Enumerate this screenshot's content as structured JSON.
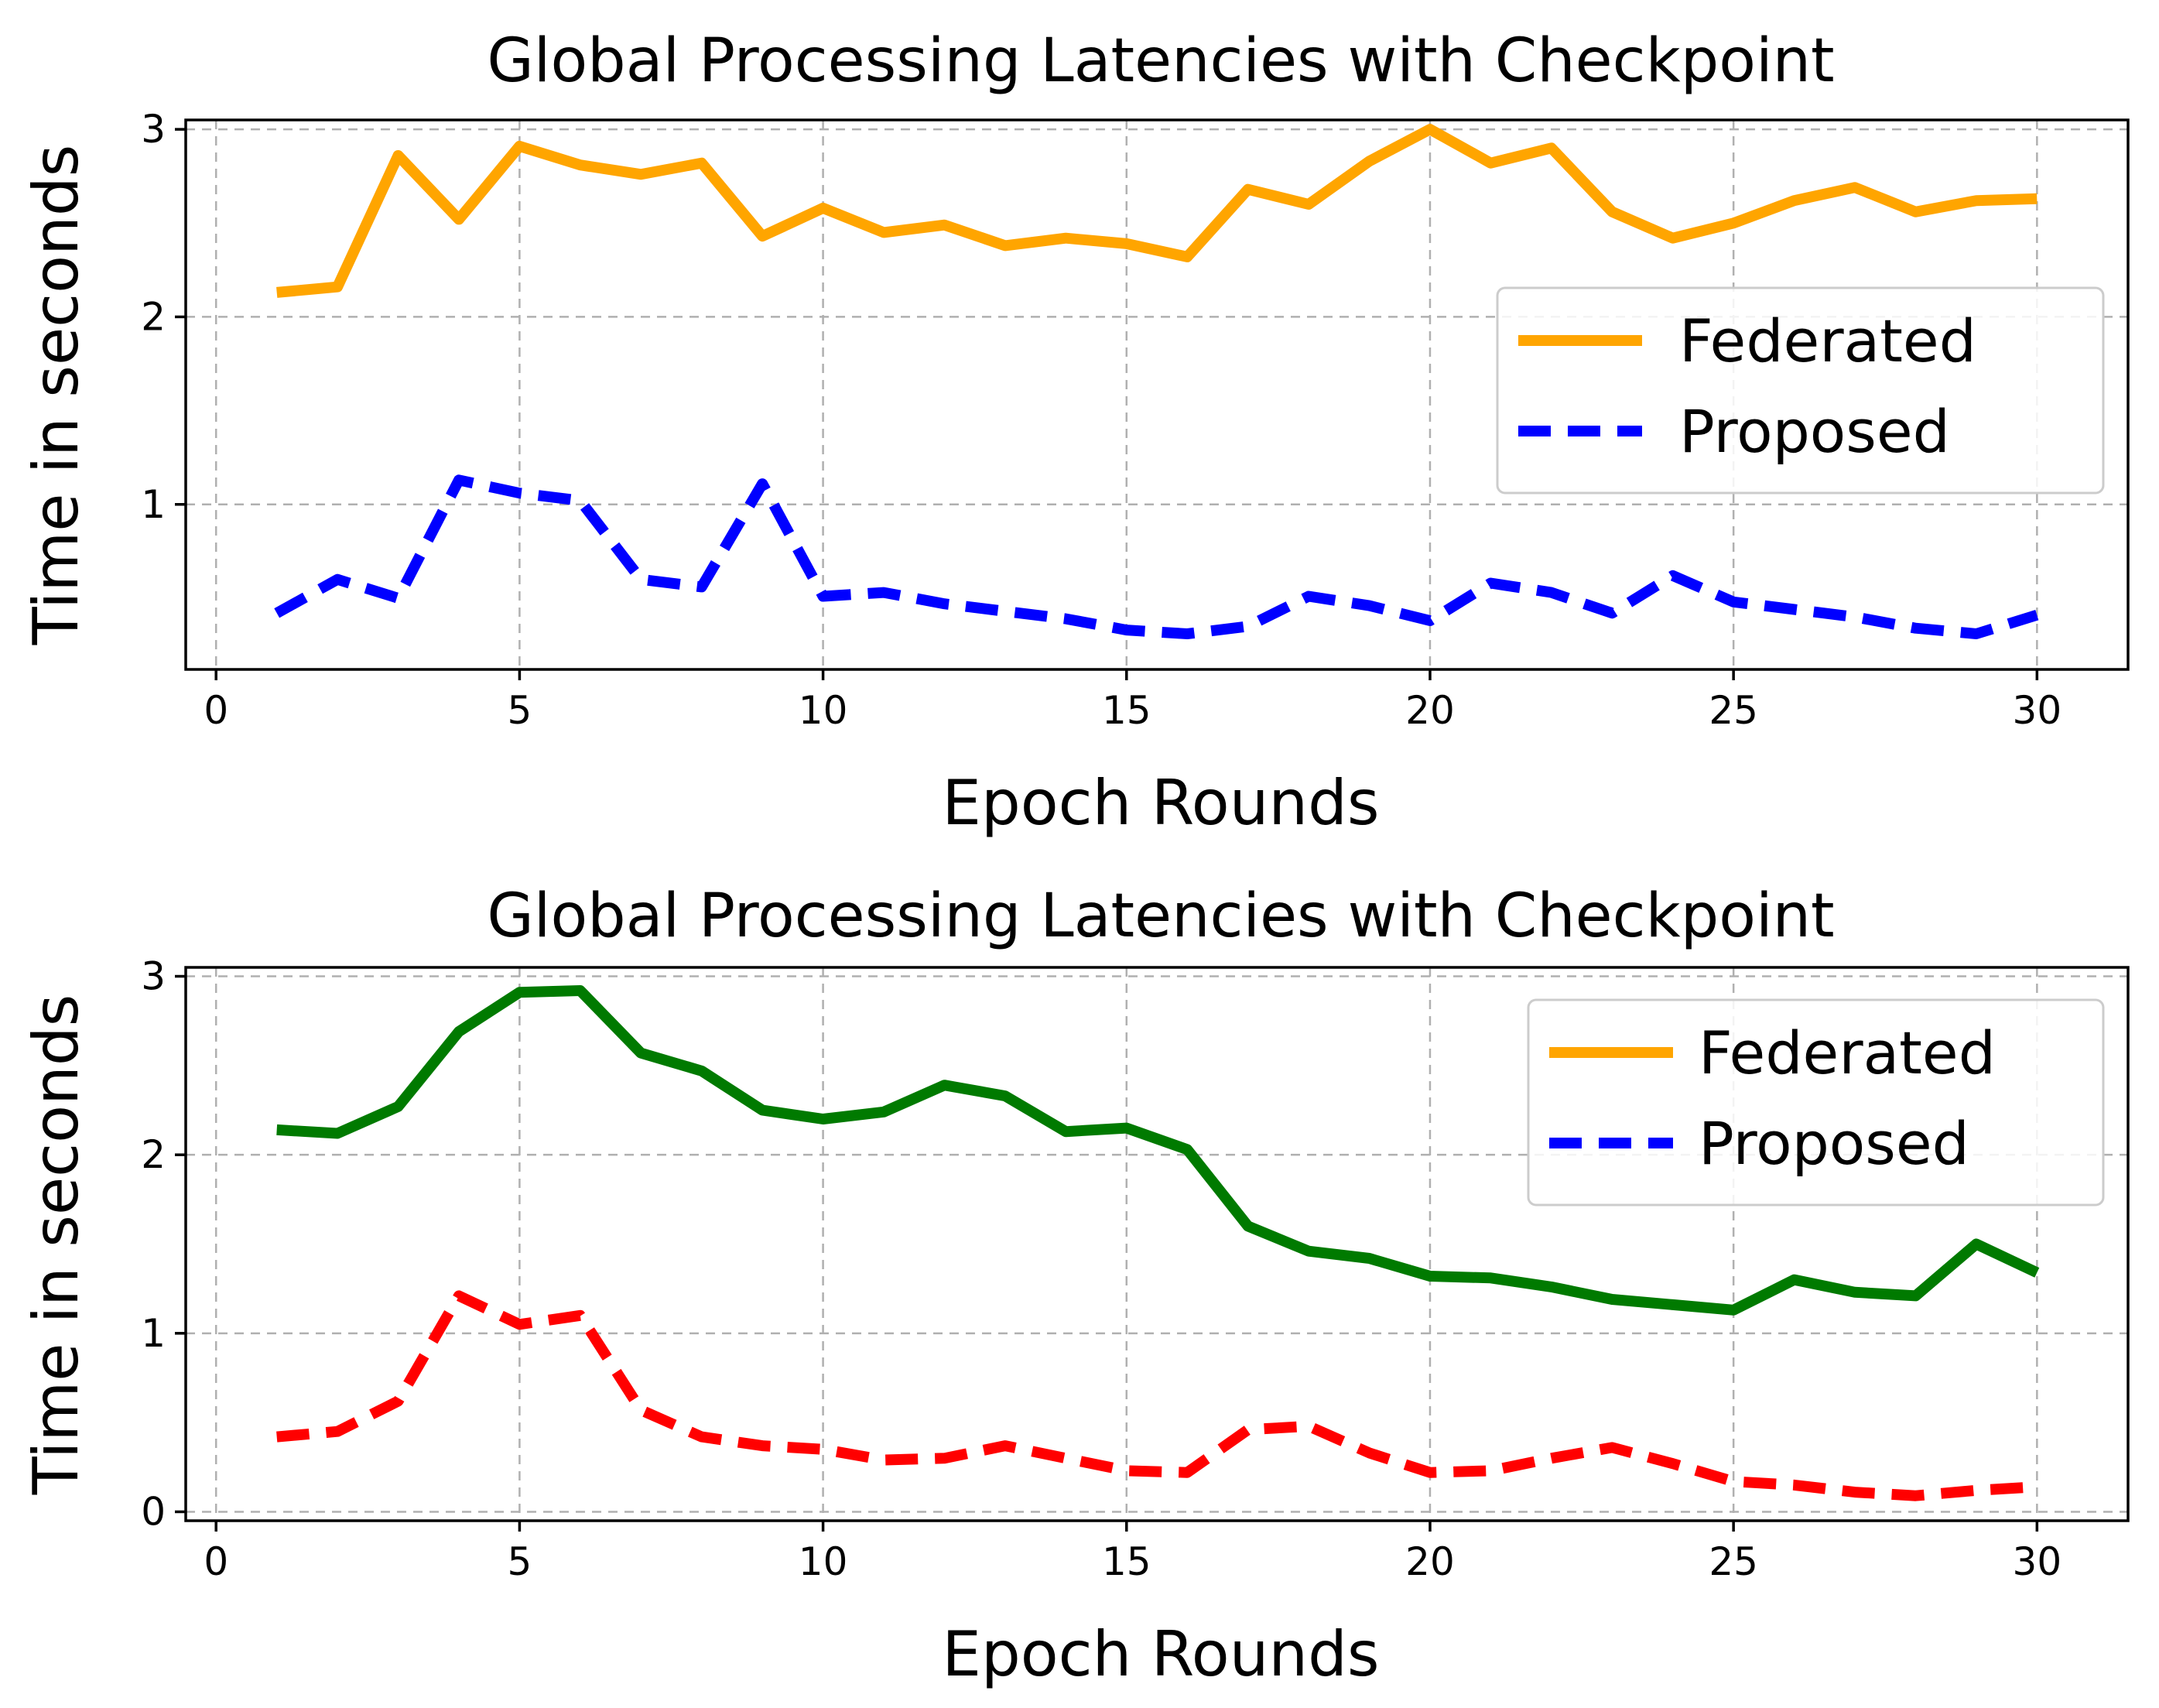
{
  "chart_data": [
    {
      "type": "line",
      "title": "Global Processing Latencies with Checkpoint",
      "xlabel": "Epoch Rounds",
      "ylabel": "Time in seconds",
      "xlim": [
        -0.5,
        31.5
      ],
      "ylim": [
        0.12,
        3.05
      ],
      "xticks": [
        0,
        5,
        10,
        15,
        20,
        25,
        30
      ],
      "yticks": [
        1,
        2,
        3
      ],
      "grid": true,
      "legend_position": "center-right",
      "legend": [
        {
          "label": "Federated",
          "color": "#ffa500",
          "dash": "solid"
        },
        {
          "label": "Proposed",
          "color": "#0000ff",
          "dash": "dashed"
        }
      ],
      "x": [
        1,
        2,
        3,
        4,
        5,
        6,
        7,
        8,
        9,
        10,
        11,
        12,
        13,
        14,
        15,
        16,
        17,
        18,
        19,
        20,
        21,
        22,
        23,
        24,
        25,
        26,
        27,
        28,
        29,
        30
      ],
      "series": [
        {
          "color": "#ffa500",
          "dash": "solid",
          "values": [
            2.13,
            2.16,
            2.86,
            2.52,
            2.91,
            2.81,
            2.76,
            2.82,
            2.43,
            2.58,
            2.45,
            2.49,
            2.38,
            2.42,
            2.39,
            2.32,
            2.68,
            2.6,
            2.83,
            3.0,
            2.82,
            2.9,
            2.56,
            2.42,
            2.5,
            2.62,
            2.69,
            2.56,
            2.62,
            2.63
          ]
        },
        {
          "color": "#0000ff",
          "dash": "dashed",
          "values": [
            0.42,
            0.6,
            0.5,
            1.13,
            1.06,
            1.02,
            0.6,
            0.56,
            1.11,
            0.51,
            0.53,
            0.47,
            0.43,
            0.39,
            0.33,
            0.31,
            0.35,
            0.51,
            0.46,
            0.38,
            0.58,
            0.53,
            0.42,
            0.62,
            0.48,
            0.44,
            0.4,
            0.34,
            0.31,
            0.41
          ]
        }
      ]
    },
    {
      "type": "line",
      "title": "Global Processing Latencies with Checkpoint",
      "xlabel": "Epoch Rounds",
      "ylabel": "Time in seconds",
      "xlim": [
        -0.5,
        31.5
      ],
      "ylim": [
        -0.05,
        3.05
      ],
      "xticks": [
        0,
        5,
        10,
        15,
        20,
        25,
        30
      ],
      "yticks": [
        0,
        1,
        2,
        3
      ],
      "grid": true,
      "legend_position": "top-right",
      "legend": [
        {
          "label": "Federated",
          "color": "#ffa500",
          "dash": "solid"
        },
        {
          "label": "Proposed",
          "color": "#0000ff",
          "dash": "dashed"
        }
      ],
      "x": [
        1,
        2,
        3,
        4,
        5,
        6,
        7,
        8,
        9,
        10,
        11,
        12,
        13,
        14,
        15,
        16,
        17,
        18,
        19,
        20,
        21,
        22,
        23,
        24,
        25,
        26,
        27,
        28,
        29,
        30
      ],
      "series": [
        {
          "color": "#007a00",
          "dash": "solid",
          "values": [
            2.14,
            2.12,
            2.27,
            2.69,
            2.91,
            2.92,
            2.57,
            2.47,
            2.25,
            2.2,
            2.24,
            2.39,
            2.33,
            2.13,
            2.15,
            2.03,
            1.6,
            1.46,
            1.42,
            1.32,
            1.31,
            1.26,
            1.19,
            1.16,
            1.13,
            1.3,
            1.23,
            1.21,
            1.5,
            1.34
          ]
        },
        {
          "color": "#ff0000",
          "dash": "dashed",
          "values": [
            0.42,
            0.45,
            0.62,
            1.21,
            1.05,
            1.1,
            0.57,
            0.42,
            0.37,
            0.35,
            0.29,
            0.3,
            0.37,
            0.3,
            0.23,
            0.22,
            0.46,
            0.48,
            0.33,
            0.22,
            0.23,
            0.3,
            0.36,
            0.27,
            0.17,
            0.15,
            0.11,
            0.09,
            0.12,
            0.14
          ]
        }
      ]
    }
  ]
}
